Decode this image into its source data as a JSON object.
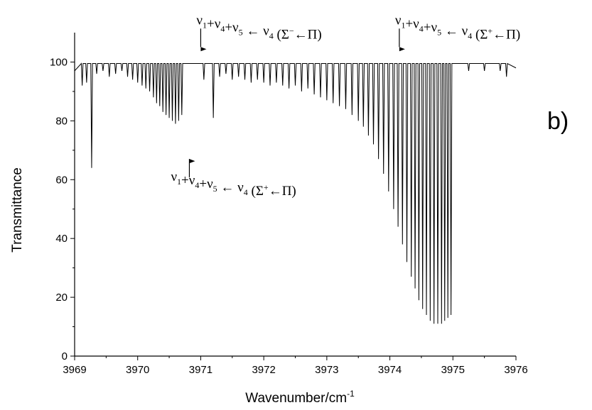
{
  "chart_data": {
    "type": "line",
    "xlabel": "Wavenumber/cm",
    "xlabel_sup": "-1",
    "ylabel": "Transmittance",
    "xlim": [
      3969,
      3976
    ],
    "ylim": [
      0,
      110
    ],
    "xticks": [
      "3969",
      "3970",
      "3971",
      "3972",
      "3973",
      "3974",
      "3975",
      "3976"
    ],
    "yticks": [
      "0",
      "20",
      "40",
      "60",
      "80",
      "100"
    ],
    "panel_label": "b)",
    "grid": false,
    "annotations": [
      {
        "parts": [
          [
            "ν",
            "1"
          ],
          [
            "+ν",
            "4"
          ],
          [
            "+ν",
            "5"
          ],
          [
            " ← ν",
            "4"
          ]
        ],
        "tail": "(Σ",
        "sym": "−",
        "end": "←Π)",
        "x": 3971.0,
        "y": 108
      },
      {
        "parts": [
          [
            "ν",
            "1"
          ],
          [
            "+ν",
            "4"
          ],
          [
            "+ν",
            "5"
          ],
          [
            " ← ν",
            "4"
          ]
        ],
        "tail": "(Σ",
        "sym": "+",
        "end": "←Π)",
        "x": 3974.15,
        "y": 108
      },
      {
        "parts": [
          [
            "ν",
            "1"
          ],
          [
            "+ν",
            "4"
          ],
          [
            "+ν",
            "5"
          ],
          [
            " ← ν",
            "4"
          ]
        ],
        "tail": "(Σ",
        "sym": "+",
        "end": "←Π)",
        "x": 3970.82,
        "y": 68
      }
    ],
    "series": [
      {
        "baseline": 100,
        "lines": [
          {
            "x": 3969.12,
            "y": 92
          },
          {
            "x": 3969.19,
            "y": 93
          },
          {
            "x": 3969.27,
            "y": 64
          },
          {
            "x": 3969.35,
            "y": 96
          },
          {
            "x": 3969.45,
            "y": 97
          },
          {
            "x": 3969.55,
            "y": 95
          },
          {
            "x": 3969.65,
            "y": 96
          },
          {
            "x": 3969.75,
            "y": 97
          },
          {
            "x": 3969.84,
            "y": 95
          },
          {
            "x": 3969.92,
            "y": 94
          },
          {
            "x": 3970.0,
            "y": 93
          },
          {
            "x": 3970.07,
            "y": 92
          },
          {
            "x": 3970.13,
            "y": 91
          },
          {
            "x": 3970.19,
            "y": 90
          },
          {
            "x": 3970.25,
            "y": 88
          },
          {
            "x": 3970.3,
            "y": 86
          },
          {
            "x": 3970.35,
            "y": 85
          },
          {
            "x": 3970.4,
            "y": 83
          },
          {
            "x": 3970.45,
            "y": 82
          },
          {
            "x": 3970.5,
            "y": 81
          },
          {
            "x": 3970.55,
            "y": 80
          },
          {
            "x": 3970.6,
            "y": 79
          },
          {
            "x": 3970.65,
            "y": 80
          },
          {
            "x": 3970.7,
            "y": 82
          },
          {
            "x": 3971.05,
            "y": 94
          },
          {
            "x": 3971.2,
            "y": 81
          },
          {
            "x": 3971.3,
            "y": 95
          },
          {
            "x": 3971.4,
            "y": 96
          },
          {
            "x": 3971.5,
            "y": 94
          },
          {
            "x": 3971.6,
            "y": 95
          },
          {
            "x": 3971.7,
            "y": 94
          },
          {
            "x": 3971.8,
            "y": 93
          },
          {
            "x": 3971.9,
            "y": 94
          },
          {
            "x": 3972.0,
            "y": 93
          },
          {
            "x": 3972.1,
            "y": 92
          },
          {
            "x": 3972.2,
            "y": 93
          },
          {
            "x": 3972.3,
            "y": 92
          },
          {
            "x": 3972.4,
            "y": 91
          },
          {
            "x": 3972.5,
            "y": 92
          },
          {
            "x": 3972.6,
            "y": 90
          },
          {
            "x": 3972.7,
            "y": 91
          },
          {
            "x": 3972.8,
            "y": 89
          },
          {
            "x": 3972.9,
            "y": 88
          },
          {
            "x": 3973.0,
            "y": 87
          },
          {
            "x": 3973.1,
            "y": 86
          },
          {
            "x": 3973.2,
            "y": 85
          },
          {
            "x": 3973.3,
            "y": 84
          },
          {
            "x": 3973.4,
            "y": 82
          },
          {
            "x": 3973.5,
            "y": 80
          },
          {
            "x": 3973.58,
            "y": 78
          },
          {
            "x": 3973.66,
            "y": 75
          },
          {
            "x": 3973.74,
            "y": 72
          },
          {
            "x": 3973.82,
            "y": 67
          },
          {
            "x": 3973.9,
            "y": 62
          },
          {
            "x": 3973.98,
            "y": 56
          },
          {
            "x": 3974.06,
            "y": 50
          },
          {
            "x": 3974.13,
            "y": 44
          },
          {
            "x": 3974.2,
            "y": 38
          },
          {
            "x": 3974.27,
            "y": 32
          },
          {
            "x": 3974.34,
            "y": 27
          },
          {
            "x": 3974.4,
            "y": 23
          },
          {
            "x": 3974.46,
            "y": 19
          },
          {
            "x": 3974.52,
            "y": 16
          },
          {
            "x": 3974.58,
            "y": 14
          },
          {
            "x": 3974.64,
            "y": 12
          },
          {
            "x": 3974.7,
            "y": 11
          },
          {
            "x": 3974.76,
            "y": 11
          },
          {
            "x": 3974.82,
            "y": 11
          },
          {
            "x": 3974.87,
            "y": 12
          },
          {
            "x": 3974.92,
            "y": 13
          },
          {
            "x": 3974.97,
            "y": 14
          },
          {
            "x": 3975.25,
            "y": 97
          },
          {
            "x": 3975.5,
            "y": 97
          },
          {
            "x": 3975.75,
            "y": 97
          },
          {
            "x": 3975.85,
            "y": 95
          }
        ]
      }
    ]
  }
}
